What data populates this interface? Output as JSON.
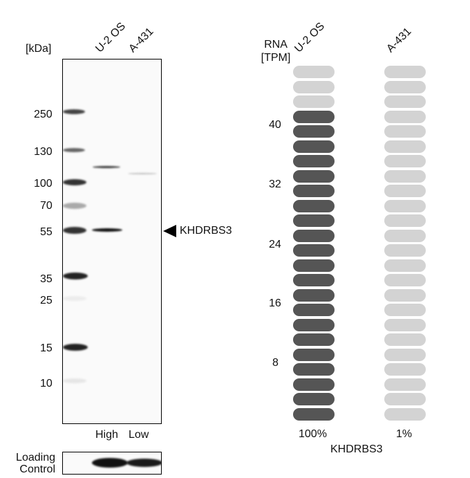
{
  "western_blot": {
    "unit_label": "[kDa]",
    "lanes": [
      "U-2 OS",
      "A-431"
    ],
    "markers": [
      "250",
      "130",
      "100",
      "70",
      "55",
      "35",
      "25",
      "15",
      "10"
    ],
    "target_label": "KHDRBS3",
    "lane_levels": [
      "High",
      "Low"
    ],
    "loading_control_line1": "Loading",
    "loading_control_line2": "Control"
  },
  "rna": {
    "axis_title_line1": "RNA",
    "axis_title_line2": "[TPM]",
    "ticks": [
      "40",
      "32",
      "24",
      "16",
      "8"
    ],
    "gene": "KHDRBS3",
    "colors": {
      "filled": "#555555",
      "empty": "#d3d3d3"
    }
  },
  "chart_data": {
    "type": "bar",
    "title": "KHDRBS3",
    "xlabel": "",
    "ylabel": "RNA [TPM]",
    "categories": [
      "U-2 OS",
      "A-431"
    ],
    "values": [
      42,
      0.4
    ],
    "relative_percent": [
      "100%",
      "1%"
    ],
    "yticks": [
      8,
      16,
      24,
      32,
      40
    ],
    "ylim": [
      0,
      48
    ],
    "segments_total": 24,
    "segments_filled": [
      21,
      0
    ],
    "western_blot_markers_kDa": [
      250,
      130,
      100,
      70,
      55,
      35,
      25,
      15,
      10
    ],
    "western_blot_target_kDa": 55,
    "grid": false,
    "legend": "none"
  }
}
